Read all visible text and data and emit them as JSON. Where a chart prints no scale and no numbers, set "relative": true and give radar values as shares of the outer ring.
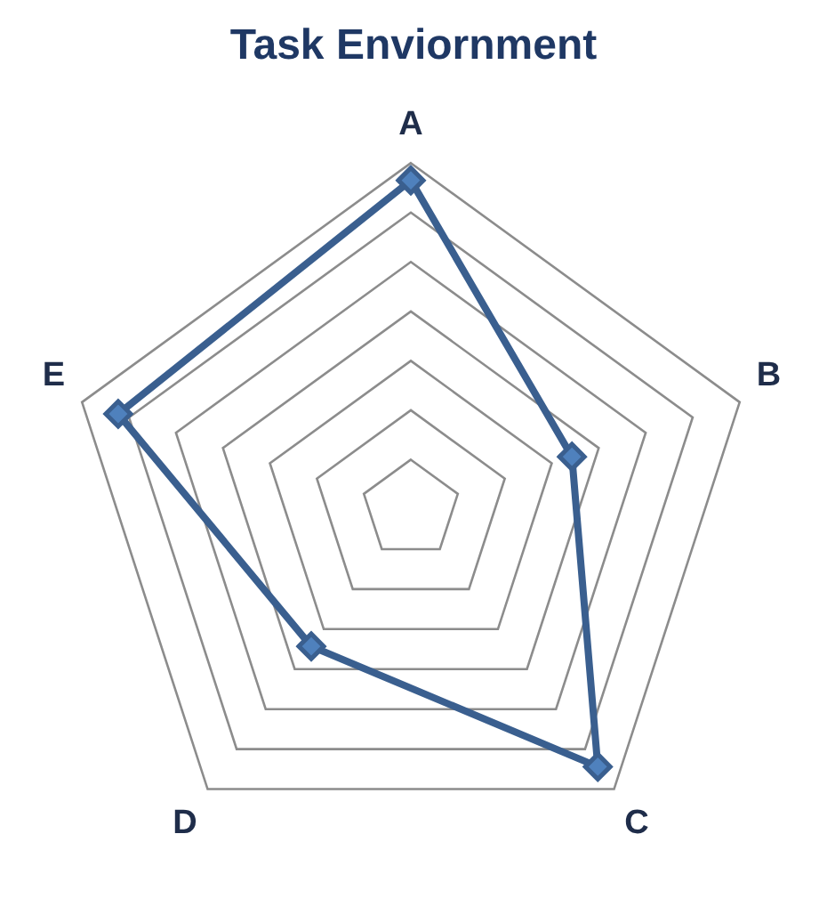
{
  "chart_data": {
    "type": "radar",
    "title": "Task Enviornment",
    "categories": [
      "A",
      "B",
      "C",
      "D",
      "E"
    ],
    "relative": true,
    "marker": "diamond",
    "legend": false,
    "series": [
      {
        "color": "#3a5f8f",
        "values": [
          0.95,
          0.49,
          0.92,
          0.49,
          0.89
        ]
      }
    ]
  }
}
